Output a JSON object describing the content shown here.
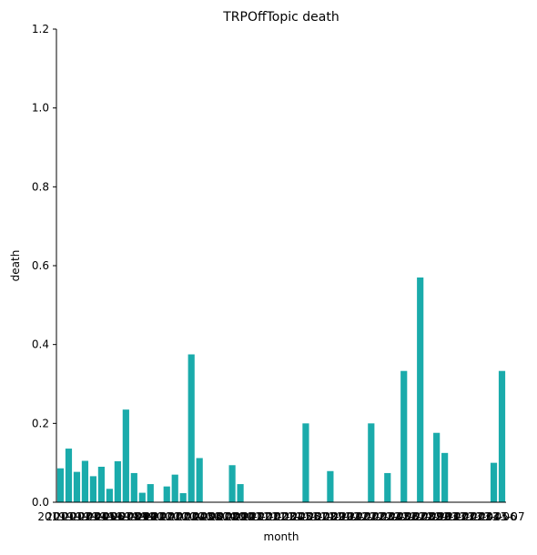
{
  "chart_data": {
    "type": "bar",
    "title": "TRPOffTopic death",
    "x_label": "month",
    "y_label": "death",
    "categories": [
      "2019-01",
      "2019-02",
      "2019-03",
      "2019-04",
      "2019-05",
      "2019-06",
      "2019-07",
      "2019-08",
      "2019-09",
      "2019-10",
      "2019-11",
      "2019-12",
      "2020-01",
      "2020-02",
      "2020-03",
      "2020-04",
      "2020-05",
      "2020-06",
      "2020-07",
      "2020-08",
      "2020-09",
      "2020-10",
      "2020-11",
      "2020-12",
      "2021-01",
      "2021-02",
      "2021-03",
      "2021-04",
      "2021-05",
      "2021-06",
      "2021-07",
      "2021-08",
      "2021-09",
      "2021-10",
      "2021-11",
      "2021-12",
      "2022-01",
      "2022-02",
      "2022-03",
      "2022-04",
      "2022-05",
      "2022-06",
      "2022-07",
      "2022-08",
      "2022-09",
      "2022-10",
      "2022-11",
      "2022-12",
      "2023-01",
      "2023-02",
      "2023-03",
      "2023-04",
      "2023-05",
      "2023-06",
      "2023-07"
    ],
    "values": [
      0.086,
      0.136,
      0.077,
      0.105,
      0.066,
      0.09,
      0.034,
      0.104,
      0.235,
      0.074,
      0.024,
      0.046,
      0,
      0.04,
      0.07,
      0.023,
      0.375,
      0.112,
      0,
      0,
      0,
      0.094,
      0.046,
      0,
      0,
      0,
      0,
      0,
      0,
      0,
      0.2,
      0,
      0,
      0.079,
      0,
      0,
      0,
      0,
      0.2,
      0,
      0.074,
      0,
      0.333,
      0,
      0.57,
      0,
      0.176,
      0.125,
      0,
      0,
      0,
      0,
      0,
      0.1,
      0.333
    ],
    "color": "#1aabab",
    "ylim": [
      0,
      1.2
    ],
    "yticks": [
      {
        "value": 0,
        "label": "0.0"
      },
      0.2,
      0.4,
      0.6,
      0.8,
      {
        "value": 1,
        "label": "1.0"
      },
      1.2
    ],
    "grid": false
  }
}
